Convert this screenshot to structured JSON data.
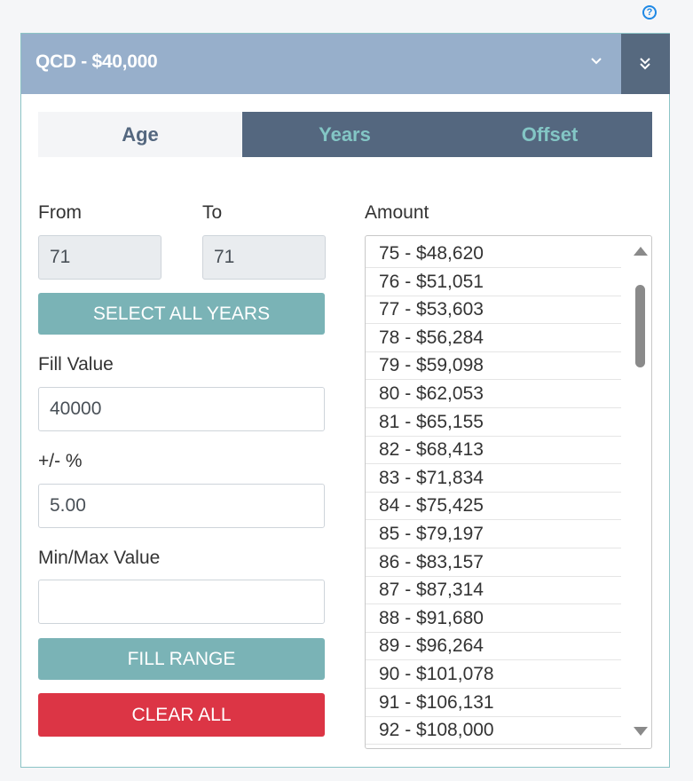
{
  "help_icon": "help-circle-icon",
  "panel": {
    "title": "QCD - $40,000",
    "chevron_icon": "chevron-down-icon",
    "collapse_icon": "double-chevron-down-icon"
  },
  "tabs": [
    {
      "label": "Age",
      "active": true
    },
    {
      "label": "Years",
      "active": false
    },
    {
      "label": "Offset",
      "active": false
    }
  ],
  "form": {
    "from_label": "From",
    "from_value": "71",
    "to_label": "To",
    "to_value": "71",
    "select_all_label": "SELECT ALL YEARS",
    "fill_value_label": "Fill Value",
    "fill_value": "40000",
    "pct_label": "+/- %",
    "pct_value": "5.00",
    "minmax_label": "Min/Max Value",
    "minmax_value": "",
    "fill_range_label": "FILL RANGE",
    "clear_all_label": "CLEAR ALL"
  },
  "amount": {
    "label": "Amount",
    "items": [
      "75 - $48,620",
      "76 - $51,051",
      "77 - $53,603",
      "78 - $56,284",
      "79 - $59,098",
      "80 - $62,053",
      "81 - $65,155",
      "82 - $68,413",
      "83 - $71,834",
      "84 - $75,425",
      "85 - $79,197",
      "86 - $83,157",
      "87 - $87,314",
      "88 - $91,680",
      "89 - $96,264",
      "90 - $101,078",
      "91 - $106,131",
      "92 - $108,000"
    ]
  },
  "colors": {
    "header": "#97afcb",
    "header_dark": "#56697f",
    "teal": "#7ab3b6",
    "red": "#dc3545"
  }
}
